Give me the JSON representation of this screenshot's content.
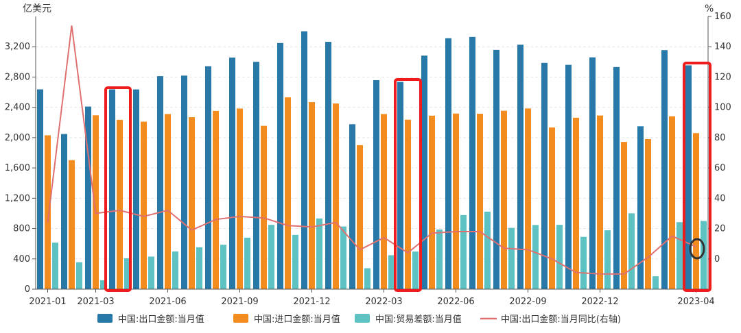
{
  "chart_data": {
    "type": "bar",
    "left_unit": "亿美元",
    "right_unit": "%",
    "categories": [
      "2021-01",
      "2021-02",
      "2021-03",
      "2021-04",
      "2021-05",
      "2021-06",
      "2021-07",
      "2021-08",
      "2021-09",
      "2021-10",
      "2021-11",
      "2021-12",
      "2022-01",
      "2022-02",
      "2022-03",
      "2022-04",
      "2022-05",
      "2022-06",
      "2022-07",
      "2022-08",
      "2022-09",
      "2022-10",
      "2022-11",
      "2022-12",
      "2023-01",
      "2023-02",
      "2023-03",
      "2023-04"
    ],
    "x_tick_labels": [
      {
        "label": "2021-01",
        "index": 0
      },
      {
        "label": "2021-03",
        "index": 2
      },
      {
        "label": "2021-06",
        "index": 5
      },
      {
        "label": "2021-09",
        "index": 8
      },
      {
        "label": "2021-12",
        "index": 11
      },
      {
        "label": "2022-03",
        "index": 14
      },
      {
        "label": "2022-06",
        "index": 17
      },
      {
        "label": "2022-09",
        "index": 20
      },
      {
        "label": "2022-12",
        "index": 23
      },
      {
        "label": "2023-04",
        "index": 27
      }
    ],
    "left_axis": {
      "min": 0,
      "max": 3600,
      "ticks": [
        0,
        400,
        800,
        1200,
        1600,
        2000,
        2400,
        2800,
        3200
      ],
      "tick_labels": [
        "0",
        "400",
        "800",
        "1,200",
        "1,600",
        "2,000",
        "2,400",
        "2,800",
        "3,200"
      ]
    },
    "right_axis": {
      "min": -20,
      "max": 160,
      "ticks": [
        0,
        20,
        40,
        60,
        80,
        100,
        120,
        140,
        160
      ]
    },
    "series": [
      {
        "name": "中国:出口金额:当月值",
        "type": "bar",
        "axis": "left",
        "color": "#2878a8",
        "values": [
          2637,
          2048,
          2410,
          2637,
          2636,
          2812,
          2819,
          2943,
          3057,
          3001,
          3249,
          3404,
          3265,
          2177,
          2759,
          2736,
          3083,
          3312,
          3330,
          3158,
          3227,
          2987,
          2961,
          3060,
          2932,
          2150,
          3155,
          2954
        ]
      },
      {
        "name": "中国:进口金额:当月值",
        "type": "bar",
        "axis": "left",
        "color": "#f28c1e",
        "values": [
          2031,
          1703,
          2295,
          2235,
          2211,
          2312,
          2270,
          2353,
          2384,
          2156,
          2532,
          2469,
          2451,
          1901,
          2312,
          2237,
          2290,
          2318,
          2316,
          2355,
          2385,
          2134,
          2263,
          2292,
          1944,
          1981,
          2282,
          2060
        ]
      },
      {
        "name": "中国:贸易差额:当月值",
        "type": "bar",
        "axis": "left",
        "color": "#5ec2c2",
        "values": [
          614,
          355,
          117,
          407,
          430,
          497,
          553,
          586,
          679,
          849,
          716,
          933,
          827,
          276,
          448,
          496,
          787,
          978,
          1023,
          809,
          847,
          849,
          690,
          777,
          1001,
          170,
          884,
          900
        ]
      },
      {
        "name": "中国:出口金额:当月同比(右轴)",
        "type": "line",
        "axis": "right",
        "color": "#e07070",
        "values": [
          24,
          154,
          30,
          32,
          28,
          32,
          19,
          26,
          28,
          27,
          22,
          21,
          24,
          6,
          14,
          4,
          17,
          18,
          18,
          7,
          6,
          0,
          -9,
          -10,
          -10,
          1,
          15,
          8
        ]
      }
    ]
  }
}
